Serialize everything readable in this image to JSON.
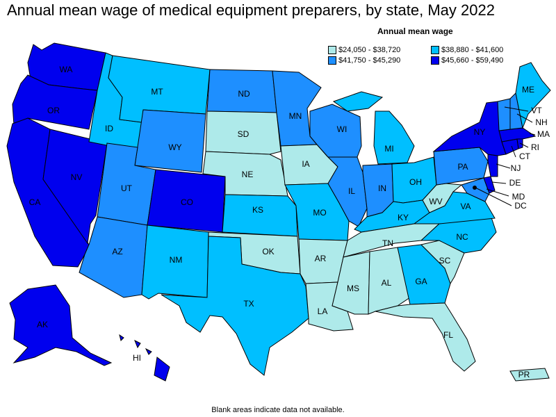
{
  "title": "Annual mean wage of medical equipment preparers, by state, May 2022",
  "legend": {
    "title": "Annual mean wage",
    "bins": [
      {
        "label": "$24,050 - $38,720",
        "color": "#aeeaea"
      },
      {
        "label": "$38,880 - $41,600",
        "color": "#00bfff"
      },
      {
        "label": "$41,750 - $45,290",
        "color": "#1e8fff"
      },
      {
        "label": "$45,660 - $59,490",
        "color": "#0000ee"
      }
    ]
  },
  "footnote": "Blank areas indicate data not available.",
  "states": {
    "WA": {
      "label": "WA",
      "bin": 3
    },
    "OR": {
      "label": "OR",
      "bin": 3
    },
    "CA": {
      "label": "CA",
      "bin": 3
    },
    "NV": {
      "label": "NV",
      "bin": 3
    },
    "ID": {
      "label": "ID",
      "bin": 1
    },
    "MT": {
      "label": "MT",
      "bin": 1
    },
    "WY": {
      "label": "WY",
      "bin": 2
    },
    "UT": {
      "label": "UT",
      "bin": 2
    },
    "AZ": {
      "label": "AZ",
      "bin": 2
    },
    "CO": {
      "label": "CO",
      "bin": 3
    },
    "NM": {
      "label": "NM",
      "bin": 1
    },
    "ND": {
      "label": "ND",
      "bin": 2
    },
    "SD": {
      "label": "SD",
      "bin": 0
    },
    "NE": {
      "label": "NE",
      "bin": 0
    },
    "KS": {
      "label": "KS",
      "bin": 1
    },
    "OK": {
      "label": "OK",
      "bin": 0
    },
    "TX": {
      "label": "TX",
      "bin": 1
    },
    "MN": {
      "label": "MN",
      "bin": 2
    },
    "IA": {
      "label": "IA",
      "bin": 0
    },
    "MO": {
      "label": "MO",
      "bin": 1
    },
    "AR": {
      "label": "AR",
      "bin": 0
    },
    "LA": {
      "label": "LA",
      "bin": 0
    },
    "WI": {
      "label": "WI",
      "bin": 2
    },
    "IL": {
      "label": "IL",
      "bin": 2
    },
    "MI": {
      "label": "MI",
      "bin": 1
    },
    "IN": {
      "label": "IN",
      "bin": 2
    },
    "OH": {
      "label": "OH",
      "bin": 1
    },
    "KY": {
      "label": "KY",
      "bin": 1
    },
    "TN": {
      "label": "TN",
      "bin": 0
    },
    "MS": {
      "label": "MS",
      "bin": 0
    },
    "AL": {
      "label": "AL",
      "bin": 0
    },
    "GA": {
      "label": "GA",
      "bin": 1
    },
    "FL": {
      "label": "FL",
      "bin": 0
    },
    "SC": {
      "label": "SC",
      "bin": 0
    },
    "NC": {
      "label": "NC",
      "bin": 1
    },
    "VA": {
      "label": "VA",
      "bin": 1
    },
    "WV": {
      "label": "WV",
      "bin": 0
    },
    "PA": {
      "label": "PA",
      "bin": 2
    },
    "NY": {
      "label": "NY",
      "bin": 3
    },
    "NJ": {
      "label": "NJ",
      "bin": 3
    },
    "DE": {
      "label": "DE",
      "bin": 3
    },
    "MD": {
      "label": "MD",
      "bin": 2
    },
    "DC": {
      "label": "DC",
      "bin": 3
    },
    "CT": {
      "label": "CT",
      "bin": 3
    },
    "RI": {
      "label": "RI",
      "bin": 3
    },
    "MA": {
      "label": "MA",
      "bin": 3
    },
    "VT": {
      "label": "VT",
      "bin": 2
    },
    "NH": {
      "label": "NH",
      "bin": 2
    },
    "ME": {
      "label": "ME",
      "bin": 1
    },
    "AK": {
      "label": "AK",
      "bin": 3
    },
    "HI": {
      "label": "HI",
      "bin": 3
    },
    "PR": {
      "label": "PR",
      "bin": 0
    }
  }
}
